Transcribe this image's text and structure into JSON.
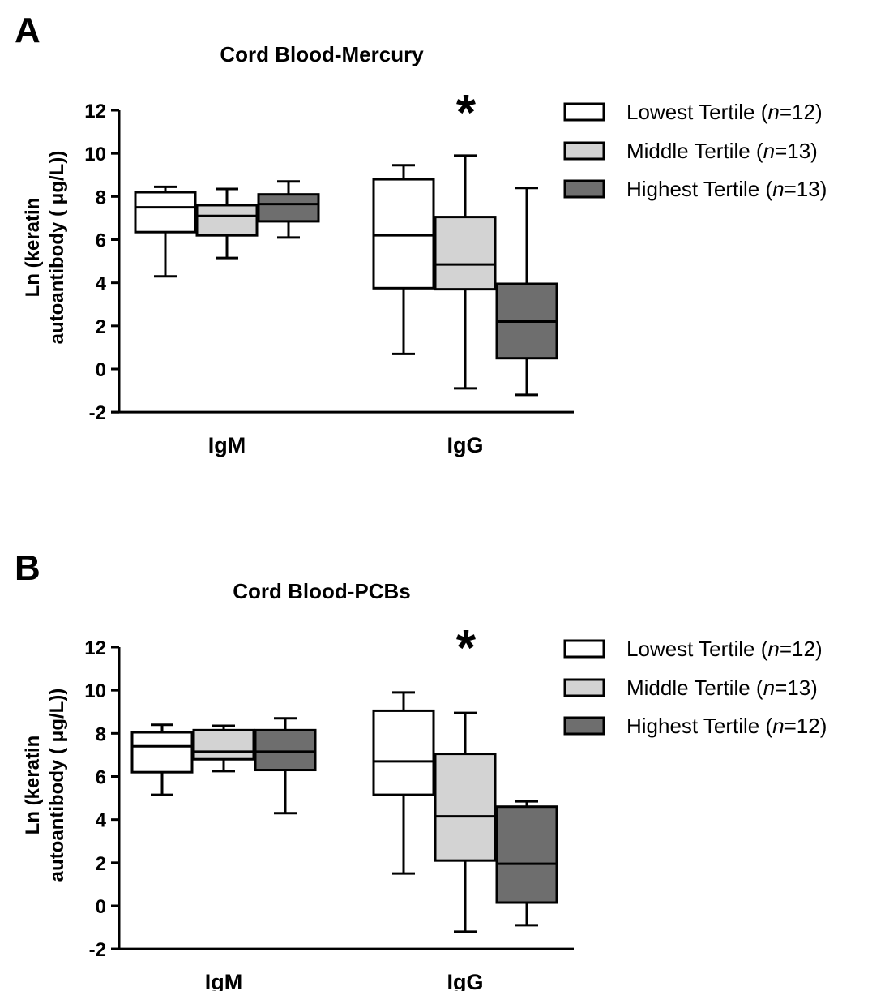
{
  "colors": {
    "lowest": "#ffffff",
    "middle": "#d3d3d3",
    "highest": "#6e6e6e",
    "stroke": "#000000"
  },
  "chart_data": [
    {
      "type": "boxplot",
      "panel_label": "A",
      "title": "Cord Blood-Mercury",
      "ylabel_line1": "Ln (keratin",
      "ylabel_line2": "autoantibody ( μg/L))",
      "ylim": [
        -2,
        12
      ],
      "yticks": [
        -2,
        0,
        2,
        4,
        6,
        8,
        10,
        12
      ],
      "categories": [
        "IgM",
        "IgG"
      ],
      "significance": [
        {
          "category": "IgG",
          "label": "*"
        }
      ],
      "legend_position": "top-right",
      "series": [
        {
          "key": "lowest",
          "legend_prefix": "Lowest Tertile (",
          "legend_n": "n",
          "legend_suffix": "=12)",
          "boxes": [
            {
              "min": 4.3,
              "q1": 6.35,
              "median": 7.5,
              "q3": 8.2,
              "max": 8.45
            },
            {
              "min": 0.7,
              "q1": 3.75,
              "median": 6.2,
              "q3": 8.8,
              "max": 9.45
            }
          ]
        },
        {
          "key": "middle",
          "legend_prefix": "Middle Tertile (",
          "legend_n": "n",
          "legend_suffix": "=13)",
          "boxes": [
            {
              "min": 5.15,
              "q1": 6.2,
              "median": 7.1,
              "q3": 7.6,
              "max": 8.35
            },
            {
              "min": -0.9,
              "q1": 3.7,
              "median": 4.85,
              "q3": 7.05,
              "max": 9.9
            }
          ]
        },
        {
          "key": "highest",
          "legend_prefix": "Highest Tertile (",
          "legend_n": "n",
          "legend_suffix": "=13)",
          "boxes": [
            {
              "min": 6.1,
              "q1": 6.85,
              "median": 7.65,
              "q3": 8.1,
              "max": 8.7
            },
            {
              "min": -1.2,
              "q1": 0.5,
              "median": 2.2,
              "q3": 3.95,
              "max": 8.4
            }
          ]
        }
      ]
    },
    {
      "type": "boxplot",
      "panel_label": "B",
      "title": "Cord Blood-PCBs",
      "ylabel_line1": "Ln (keratin",
      "ylabel_line2": "autoantibody ( μg/L))",
      "ylim": [
        -2,
        12
      ],
      "yticks": [
        -2,
        0,
        2,
        4,
        6,
        8,
        10,
        12
      ],
      "categories": [
        "IgM",
        "IgG"
      ],
      "significance": [
        {
          "category": "IgG",
          "label": "*"
        }
      ],
      "legend_position": "top-right",
      "series": [
        {
          "key": "lowest",
          "legend_prefix": "Lowest Tertile (",
          "legend_n": "n",
          "legend_suffix": "=12)",
          "boxes": [
            {
              "min": 5.15,
              "q1": 6.2,
              "median": 7.4,
              "q3": 8.05,
              "max": 8.4
            },
            {
              "min": 1.5,
              "q1": 5.15,
              "median": 6.7,
              "q3": 9.05,
              "max": 9.9
            }
          ]
        },
        {
          "key": "middle",
          "legend_prefix": "Middle Tertile (",
          "legend_n": "n",
          "legend_suffix": "=13)",
          "boxes": [
            {
              "min": 6.25,
              "q1": 6.8,
              "median": 7.15,
              "q3": 8.15,
              "max": 8.35
            },
            {
              "min": -1.2,
              "q1": 2.1,
              "median": 4.15,
              "q3": 7.05,
              "max": 8.95
            }
          ]
        },
        {
          "key": "highest",
          "legend_prefix": "Highest Tertile (",
          "legend_n": "n",
          "legend_suffix": "=12)",
          "boxes": [
            {
              "min": 4.3,
              "q1": 6.3,
              "median": 7.15,
              "q3": 8.15,
              "max": 8.7
            },
            {
              "min": -0.9,
              "q1": 0.15,
              "median": 1.95,
              "q3": 4.6,
              "max": 4.85
            }
          ]
        }
      ]
    }
  ]
}
